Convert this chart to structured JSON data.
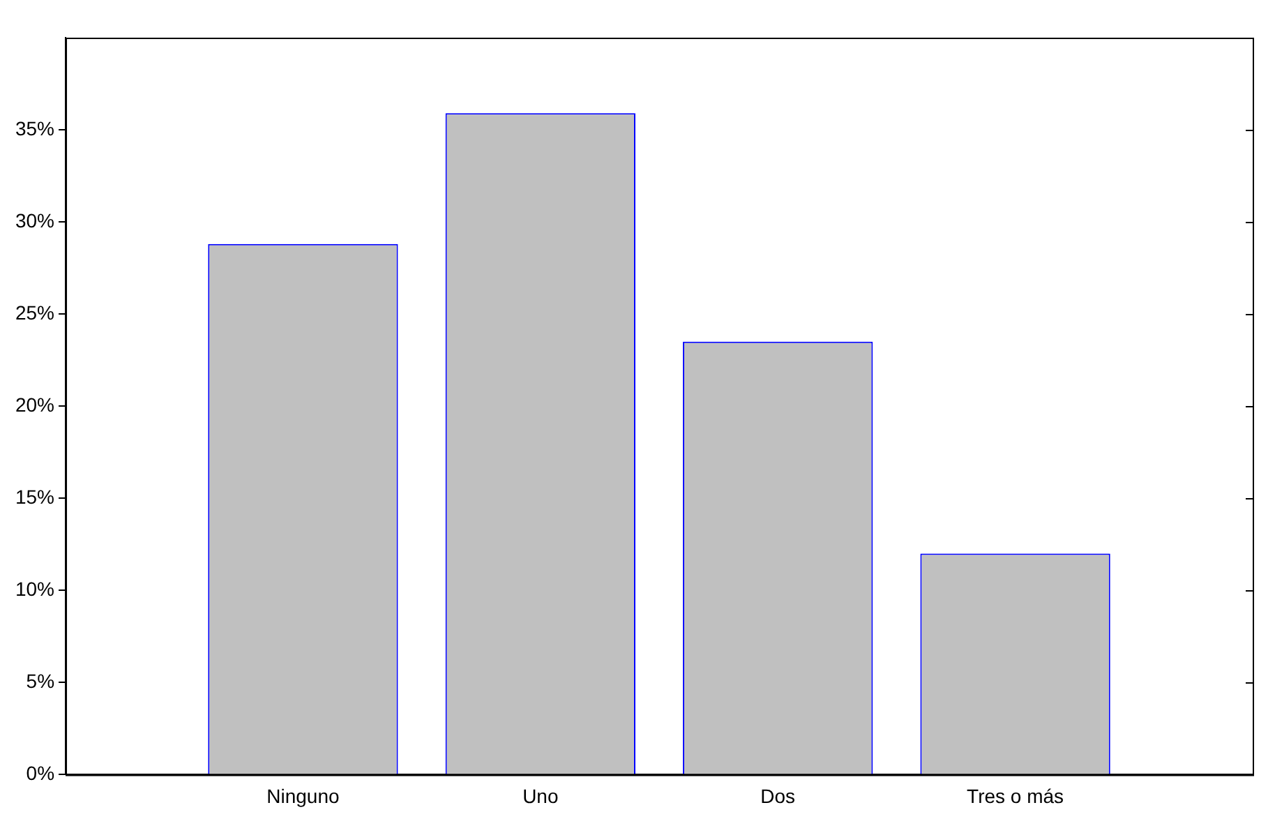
{
  "chart_data": {
    "type": "bar",
    "categories": [
      "Ninguno",
      "Uno",
      "Dos",
      "Tres o más"
    ],
    "values": [
      28.8,
      35.9,
      23.5,
      12.0
    ],
    "color": "#c0c0c0",
    "ylim": [
      0,
      40
    ],
    "yticks": [
      {
        "value": 0,
        "label": "0%"
      },
      {
        "value": 5,
        "label": "5%"
      },
      {
        "value": 10,
        "label": "10%"
      },
      {
        "value": 15,
        "label": "15%"
      },
      {
        "value": 20,
        "label": "20%"
      },
      {
        "value": 25,
        "label": "25%"
      },
      {
        "value": 30,
        "label": "30%"
      },
      {
        "value": 35,
        "label": "35%"
      }
    ],
    "grid": false,
    "legend": false
  }
}
